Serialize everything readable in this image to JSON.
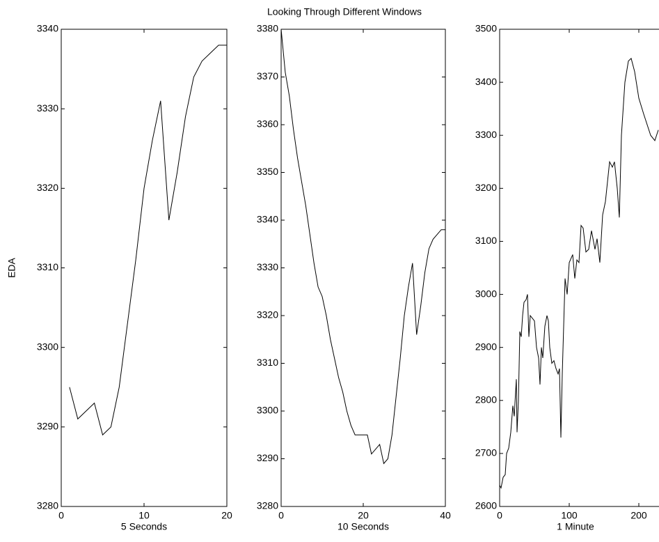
{
  "title": "Looking Through Different Windows",
  "chart_data": [
    {
      "type": "line",
      "xlabel": "5 Seconds",
      "ylabel": "EDA",
      "xlim": [
        0,
        20
      ],
      "xticks": [
        0,
        10,
        20
      ],
      "ylim": [
        3280,
        3340
      ],
      "yticks": [
        3280,
        3290,
        3300,
        3310,
        3320,
        3330,
        3340
      ],
      "series": [
        {
          "color": "#000000",
          "x": [
            1,
            2,
            3,
            4,
            5,
            6,
            7,
            8,
            9,
            10,
            11,
            12,
            13,
            14,
            15,
            16,
            17,
            18,
            19,
            20
          ],
          "values": [
            3295,
            3291,
            3292,
            3293,
            3289,
            3290,
            3295,
            3303,
            3311,
            3320,
            3326,
            3331,
            3316,
            3322,
            3329,
            3334,
            3336,
            3337,
            3338,
            3338
          ]
        }
      ]
    },
    {
      "type": "line",
      "xlabel": "10 Seconds",
      "xlim": [
        0,
        40
      ],
      "xticks": [
        0,
        20,
        40
      ],
      "ylim": [
        3280,
        3380
      ],
      "yticks": [
        3280,
        3290,
        3300,
        3310,
        3320,
        3330,
        3340,
        3350,
        3360,
        3370,
        3380
      ],
      "series": [
        {
          "color": "#000000",
          "x": [
            0,
            1,
            2,
            3,
            4,
            5,
            6,
            7,
            8,
            9,
            10,
            11,
            12,
            13,
            14,
            15,
            16,
            17,
            18,
            19,
            20,
            21,
            22,
            23,
            24,
            25,
            26,
            27,
            28,
            29,
            30,
            31,
            32,
            33,
            34,
            35,
            36,
            37,
            38,
            39,
            40
          ],
          "values": [
            3380,
            3371,
            3366,
            3359,
            3353,
            3348,
            3343,
            3337,
            3331,
            3326,
            3324,
            3320,
            3315,
            3311,
            3307,
            3304,
            3300,
            3297,
            3295,
            3295,
            3295,
            3295,
            3291,
            3292,
            3293,
            3289,
            3290,
            3295,
            3303,
            3311,
            3320,
            3326,
            3331,
            3316,
            3322,
            3329,
            3334,
            3336,
            3337,
            3338,
            3338
          ]
        }
      ]
    },
    {
      "type": "line",
      "xlabel": "1 Minute",
      "xlim": [
        0,
        240
      ],
      "xticks": [
        0,
        100,
        200
      ],
      "ylim": [
        2600,
        3500
      ],
      "yticks": [
        2600,
        2700,
        2800,
        2900,
        3000,
        3100,
        3200,
        3300,
        3400,
        3500
      ],
      "series": [
        {
          "color": "#000000",
          "x": [
            0,
            2,
            5,
            8,
            10,
            13,
            16,
            19,
            21,
            22,
            24,
            25,
            27,
            29,
            31,
            33,
            35,
            38,
            40,
            42,
            44,
            47,
            50,
            53,
            56,
            58,
            60,
            62,
            65,
            68,
            70,
            72,
            75,
            78,
            81,
            84,
            86,
            88,
            90,
            94,
            97,
            100,
            105,
            108,
            111,
            114,
            117,
            120,
            124,
            128,
            132,
            137,
            140,
            144,
            148,
            152,
            158,
            162,
            165,
            169,
            172,
            175,
            180,
            185,
            189,
            194,
            200,
            207,
            217,
            223,
            228
          ],
          "values": [
            2640,
            2635,
            2655,
            2660,
            2700,
            2710,
            2740,
            2790,
            2770,
            2795,
            2840,
            2740,
            2800,
            2930,
            2920,
            2960,
            2985,
            2990,
            3000,
            2920,
            2960,
            2955,
            2950,
            2900,
            2880,
            2830,
            2900,
            2880,
            2940,
            2960,
            2950,
            2900,
            2870,
            2875,
            2860,
            2850,
            2860,
            2730,
            2850,
            3030,
            3000,
            3060,
            3075,
            3030,
            3065,
            3060,
            3130,
            3125,
            3080,
            3085,
            3120,
            3085,
            3105,
            3060,
            3150,
            3175,
            3250,
            3240,
            3250,
            3200,
            3145,
            3300,
            3400,
            3440,
            3445,
            3420,
            3370,
            3340,
            3300,
            3290,
            3310
          ]
        }
      ]
    }
  ]
}
